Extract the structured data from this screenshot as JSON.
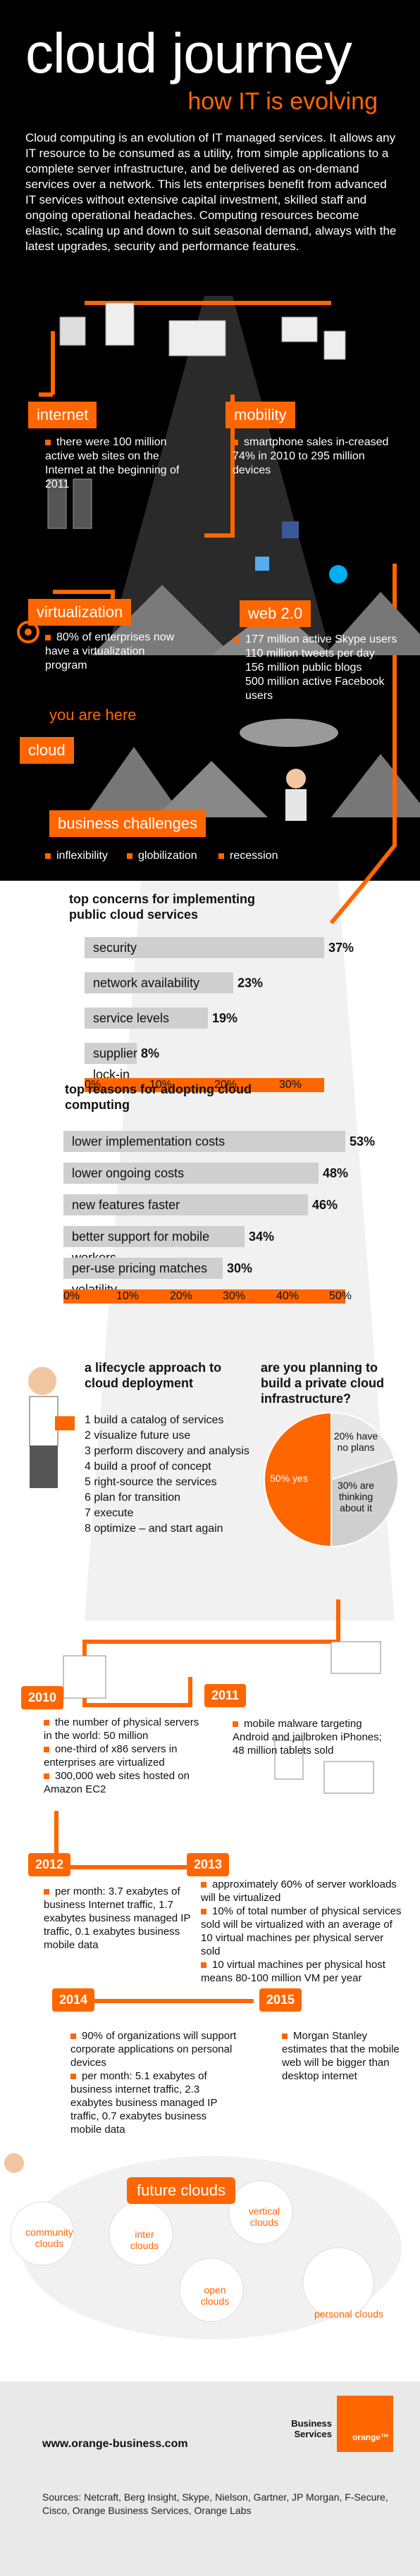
{
  "header": {
    "title": "cloud journey",
    "subtitle": "how IT is evolving",
    "intro": "Cloud computing is an evolution of IT managed services. It allows any IT resource to be consumed as a utility, from simple applications to a complete server infrastructure, and be delivered as on-demand services over a network. This lets enterprises benefit from advanced IT services without extensive capital investment, skilled staff and ongoing operational headaches. Computing resources become elastic, scaling up and down to suit seasonal demand, always with the latest upgrades, security and performance features."
  },
  "journey": {
    "internet": {
      "label": "internet",
      "stat": "there were 100 million active web sites on the Internet at the beginning of 2011"
    },
    "mobility": {
      "label": "mobility",
      "stat": "smartphone sales in-creased 74% in 2010 to 295 million devices"
    },
    "virtualization": {
      "label": "virtualization",
      "stat": "80% of enterprises now have a virtualization program"
    },
    "web20": {
      "label": "web 2.0",
      "stats": [
        "177 million active Skype users",
        "110 million tweets per day",
        "156 million public blogs",
        "500 million active Facebook users"
      ]
    },
    "you_are_here": "you are here",
    "cloud": "cloud",
    "business_challenges": {
      "label": "business challenges",
      "items": [
        "inflexibility",
        "globilization",
        "recession"
      ]
    }
  },
  "chart_data": [
    {
      "type": "bar",
      "title": "top concerns for implementing public cloud services",
      "categories": [
        "security",
        "network availability",
        "service levels",
        "supplier lock-in"
      ],
      "values": [
        37,
        23,
        19,
        8
      ],
      "ticks": [
        "0%",
        "10%",
        "20%",
        "30%"
      ],
      "xlim": [
        0,
        37
      ]
    },
    {
      "type": "bar",
      "title": "top reasons for adopting cloud computing",
      "categories": [
        "lower implementation costs",
        "lower ongoing costs",
        "new features faster",
        "better support for mobile workers",
        "per-use pricing matches volatility"
      ],
      "values": [
        53,
        48,
        46,
        34,
        30
      ],
      "ticks": [
        "0%",
        "10%",
        "20%",
        "30%",
        "40%",
        "50%"
      ],
      "xlim": [
        0,
        53
      ]
    },
    {
      "type": "pie",
      "title": "are you planning to build a private cloud infrastructure?",
      "categories": [
        "yes",
        "have no plans",
        "are thinking about it"
      ],
      "values": [
        50,
        20,
        30
      ],
      "labels": [
        "50% yes",
        "20% have no plans",
        "30% are thinking about it"
      ]
    }
  ],
  "lifecycle": {
    "title": "a lifecycle approach to cloud deployment",
    "steps": [
      "1 build a catalog of services",
      "2 visualize future use",
      "3 perform discovery and analysis",
      "4 build a proof of concept",
      "5 right-source the services",
      "6 plan for transition",
      "7 execute",
      "8 optimize – and start again"
    ]
  },
  "timeline": [
    {
      "year": "2010",
      "items": [
        "the number of physical servers in the world: 50 million",
        "one-third of x86 servers in enterprises are virtualized",
        "300,000 web sites hosted on Amazon EC2"
      ]
    },
    {
      "year": "2011",
      "items": [
        "mobile malware targeting Android and jailbroken iPhones; 48 million tablets sold"
      ]
    },
    {
      "year": "2012",
      "items": [
        "per month: 3.7 exabytes of business Internet traffic, 1.7 exabytes business managed IP traffic, 0.1 exabytes business mobile data"
      ]
    },
    {
      "year": "2013",
      "items": [
        "approximately 60% of server workloads will be virtualized",
        "10% of total number of physical services sold will be virtualized with an average of 10 virtual machines per physical server sold",
        "10 virtual machines per physical host means 80-100 million VM per year"
      ]
    },
    {
      "year": "2014",
      "items": [
        "90% of organizations will support corporate applications on personal devices",
        "per month: 5.1 exabytes of business internet traffic, 2.3 exabytes business managed IP traffic, 0.7 exabytes business mobile data"
      ]
    },
    {
      "year": "2015",
      "items": [
        "Morgan Stanley estimates that the mobile web will be bigger than desktop internet"
      ]
    }
  ],
  "future": {
    "label": "future clouds",
    "types": [
      "community clouds",
      "inter clouds",
      "vertical clouds",
      "open clouds",
      "personal clouds"
    ]
  },
  "footer": {
    "url": "www.orange-business.com",
    "brand_line1": "Business",
    "brand_line2": "Services",
    "logo": "orange™",
    "sources": "Sources: Netcraft, Berg Insight, Skype, Nielson, Gartner, JP Morgan, F-Secure, Cisco, Orange Business Services, Orange Labs"
  },
  "colors": {
    "accent": "#ff6600",
    "dark": "#000000",
    "bar": "#cfcfcf",
    "footer": "#e9e9e9"
  }
}
